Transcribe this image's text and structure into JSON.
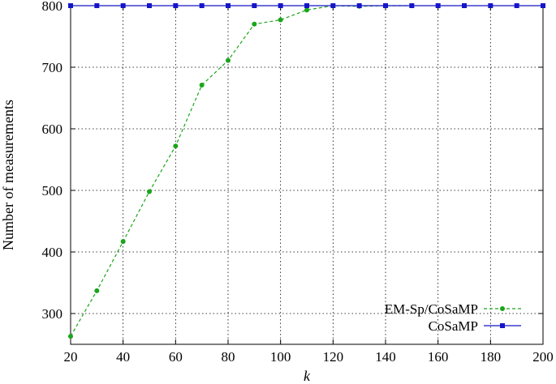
{
  "chart_data": {
    "type": "line",
    "title": "",
    "xlabel": "k",
    "ylabel": "Number of measurements",
    "xlim": [
      20,
      200
    ],
    "ylim": [
      250,
      800
    ],
    "xticks": [
      20,
      40,
      60,
      80,
      100,
      120,
      140,
      160,
      180,
      200
    ],
    "yticks": [
      300,
      400,
      500,
      600,
      700,
      800
    ],
    "grid": true,
    "legend_position": "bottom-right",
    "series": [
      {
        "name": "EM-Sp/CoSaMP",
        "color": "#1aa51a",
        "line_style": "dashed",
        "marker": "circle",
        "x": [
          20,
          30,
          40,
          50,
          60,
          70,
          80,
          90,
          100,
          110,
          120,
          130,
          140,
          150
        ],
        "y": [
          263,
          337,
          417,
          498,
          572,
          671,
          711,
          770,
          777,
          793,
          800,
          799,
          800,
          800
        ]
      },
      {
        "name": "CoSaMP",
        "color": "#1515c8",
        "line_style": "solid",
        "marker": "square",
        "x": [
          20,
          30,
          40,
          50,
          60,
          70,
          80,
          90,
          100,
          110,
          120,
          130,
          140,
          150,
          160,
          170,
          180,
          190,
          200
        ],
        "y": [
          800,
          800,
          800,
          800,
          800,
          800,
          800,
          800,
          800,
          800,
          800,
          800,
          800,
          800,
          800,
          800,
          800,
          800,
          800
        ]
      }
    ]
  }
}
